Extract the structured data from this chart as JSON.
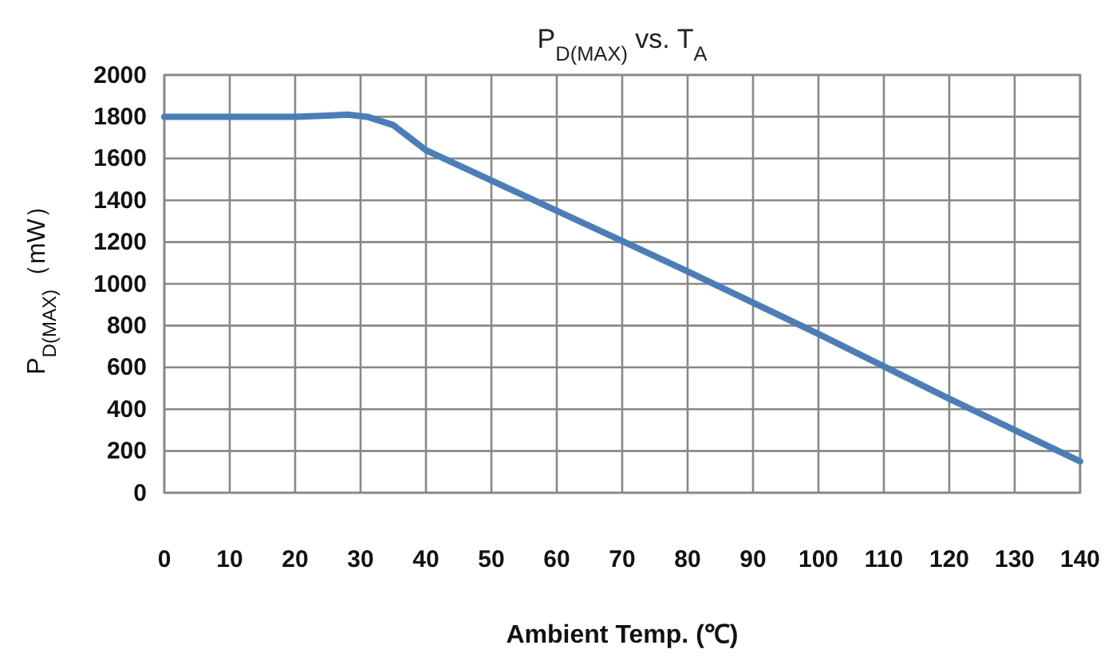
{
  "chart_data": {
    "type": "line",
    "title": "P$_{D(MAX)}$ vs. T$_{A}$",
    "xlabel": "Ambient Temp. (℃)",
    "ylabel": "P$_{D(MAX)}$（mW）",
    "x": [
      0,
      10,
      20,
      25,
      28,
      31,
      35,
      40,
      60,
      80,
      100,
      120,
      140
    ],
    "series": [
      {
        "color": "#4a7ebb",
        "values": [
          1800,
          1800,
          1800,
          1805,
          1810,
          1800,
          1760,
          1640,
          1350,
          1060,
          760,
          450,
          150
        ]
      }
    ],
    "xlim": [
      0,
      140
    ],
    "xticks": [
      0,
      10,
      20,
      30,
      40,
      50,
      60,
      70,
      80,
      90,
      100,
      110,
      120,
      130,
      140
    ],
    "ylim": [
      0,
      2000
    ],
    "yticks": [
      0,
      200,
      400,
      600,
      800,
      1000,
      1200,
      1400,
      1600,
      1800,
      2000
    ],
    "grid": true,
    "marker": "none",
    "line_style": "solid"
  }
}
